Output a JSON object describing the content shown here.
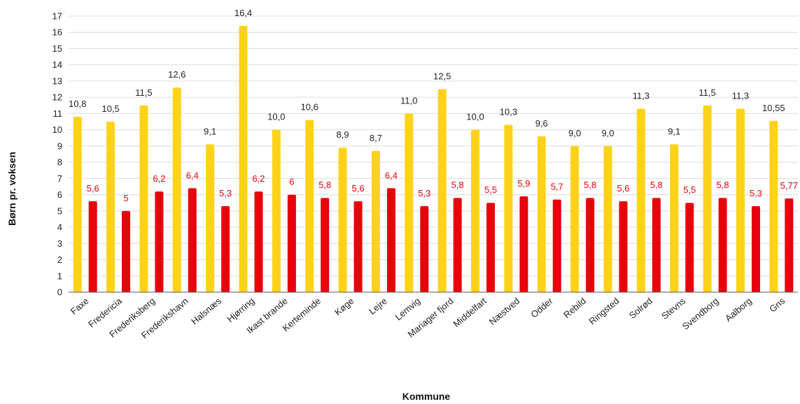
{
  "chart_data": {
    "type": "bar",
    "categories": [
      "Faxe",
      "Fredericia",
      "Frederiksberg",
      "Frederikshavn",
      "Halsnæs",
      "Hjørring",
      "Ikast brande",
      "Kerteminde",
      "Køge",
      "Lejre",
      "Lemvig",
      "Mariager fjord",
      "Middelfart",
      "Næstved",
      "Odder",
      "Rebild",
      "Ringsted",
      "Solrød",
      "Stevns",
      "Svendborg",
      "Aalborg",
      "Gns"
    ],
    "series": [
      {
        "color": "#ffd21a",
        "values": [
          10.8,
          10.5,
          11.5,
          12.6,
          9.1,
          16.4,
          10.0,
          10.6,
          8.9,
          8.7,
          11.0,
          12.5,
          10.0,
          10.3,
          9.6,
          9.0,
          9.0,
          11.3,
          9.1,
          11.5,
          11.3,
          10.55
        ],
        "labels": [
          "10,8",
          "10,5",
          "11,5",
          "12,6",
          "9,1",
          "16,4",
          "10,0",
          "10,6",
          "8,9",
          "8,7",
          "11,0",
          "12,5",
          "10,0",
          "10,3",
          "9,6",
          "9,0",
          "9,0",
          "11,3",
          "9,1",
          "11,5",
          "11,3",
          "10,55"
        ]
      },
      {
        "color": "#e8000b",
        "values": [
          5.6,
          5.0,
          6.2,
          6.4,
          5.3,
          6.2,
          6.0,
          5.8,
          5.6,
          6.4,
          5.3,
          5.8,
          5.5,
          5.9,
          5.7,
          5.8,
          5.6,
          5.8,
          5.5,
          5.8,
          5.3,
          5.77
        ],
        "labels": [
          "5,6",
          "5",
          "6,2",
          "6,4",
          "5,3",
          "6,2",
          "6",
          "5,8",
          "5,6",
          "6,4",
          "5,3",
          "5,8",
          "5,5",
          "5,9",
          "5,7",
          "5,8",
          "5,6",
          "5,8",
          "5,5",
          "5,8",
          "5,3",
          "5,77"
        ]
      }
    ],
    "xlabel": "Kommune",
    "ylabel": "Børn pr. voksen",
    "ylim": [
      0,
      17
    ],
    "yticks": [
      "0",
      "1",
      "2",
      "3",
      "4",
      "5",
      "6",
      "7",
      "8",
      "9",
      "10",
      "11",
      "12",
      "13",
      "14",
      "15",
      "16",
      "17"
    ],
    "grid": true,
    "legend": "none"
  }
}
